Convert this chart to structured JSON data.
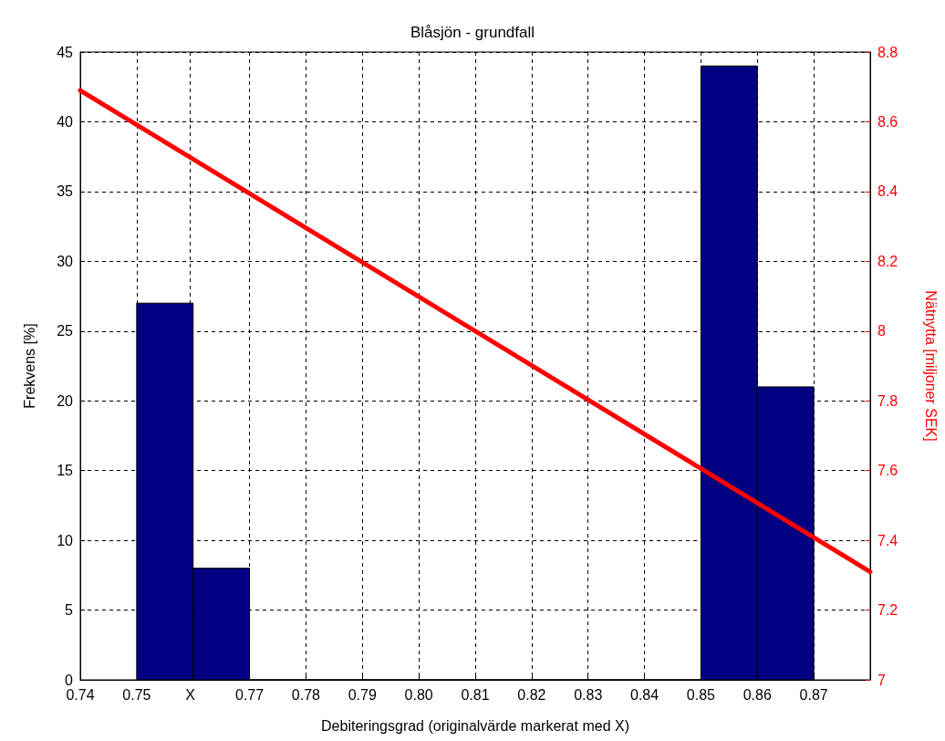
{
  "chart_data": {
    "type": "histogram",
    "title": "Blåsjön - grundfall",
    "xlabel": "Debiteringsgrad (originalvärde markerat med X)",
    "ylabel": "Frekvens [%]",
    "y2label": "Nätnytta [miljoner SEK]",
    "bins": [
      0.75,
      0.76,
      0.77,
      0.78,
      0.79,
      0.8,
      0.81,
      0.82,
      0.83,
      0.84,
      0.85,
      0.86,
      0.87
    ],
    "values": [
      27,
      8,
      0,
      0,
      0,
      0,
      0,
      0,
      0,
      0,
      44,
      21
    ],
    "color": "#000080",
    "series": [
      {
        "type": "line",
        "axis": "y2",
        "color": "#ff0000",
        "x": [
          0.74,
          0.88
        ],
        "values": [
          8.69,
          7.31
        ]
      }
    ],
    "xlim": [
      0.74,
      0.88
    ],
    "xticks": [
      0.74,
      0.75,
      {
        "value": 0.7595,
        "label": "X"
      },
      0.77,
      0.78,
      0.79,
      {
        "value": 0.8,
        "label": "0.80"
      },
      0.81,
      0.82,
      0.83,
      0.84,
      0.85,
      0.86,
      0.87
    ],
    "ylim": [
      0,
      45
    ],
    "yticks": [
      0,
      5,
      10,
      15,
      20,
      25,
      30,
      35,
      40,
      45
    ],
    "y2lim": [
      7,
      8.8
    ],
    "y2ticks": [
      7,
      7.2,
      7.4,
      7.6,
      7.8,
      8,
      8.2,
      8.4,
      8.6,
      8.8
    ],
    "grid": true,
    "line_style": "solid",
    "marker": "none"
  }
}
